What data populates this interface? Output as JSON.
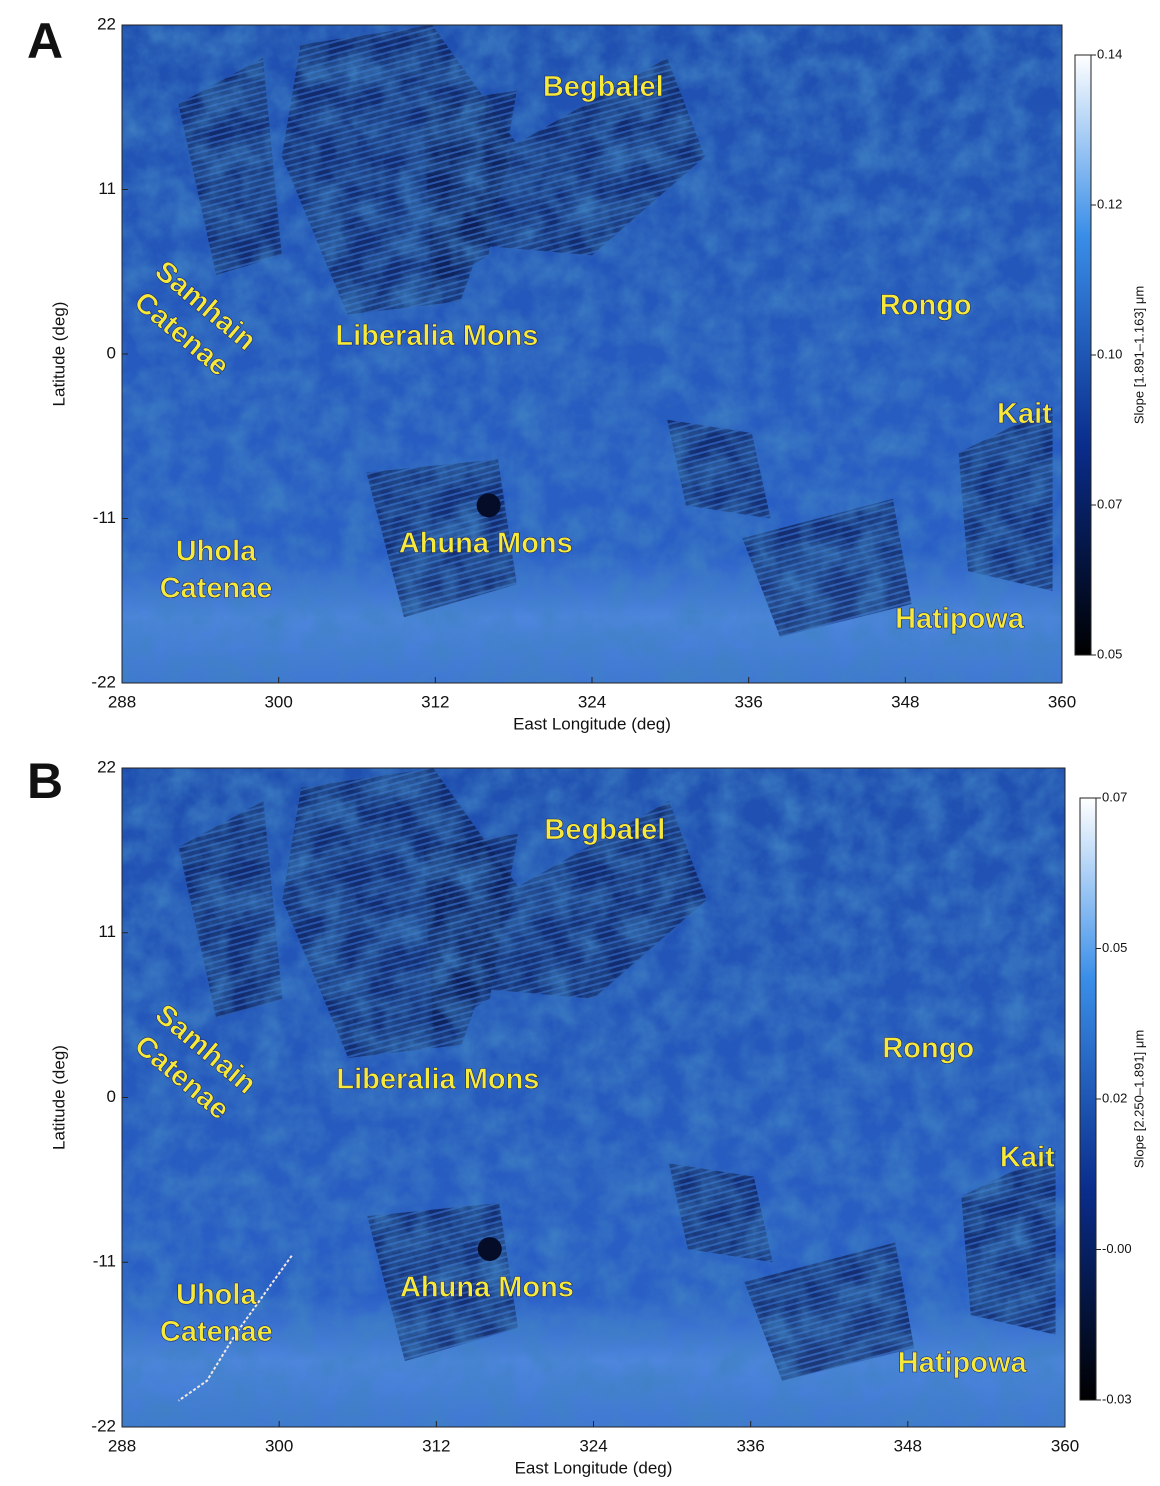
{
  "panels": [
    {
      "letter": "A",
      "xlabel": "East Longitude (deg)",
      "ylabel": "Latitude (deg)",
      "xlim": [
        288,
        360
      ],
      "xticks": [
        288,
        300,
        312,
        324,
        336,
        348,
        360
      ],
      "ylim": [
        -22,
        22
      ],
      "yticks": [
        -22,
        -11,
        0,
        11,
        22
      ],
      "colorbar_label": "Slope [1.891–1.163] μm",
      "clim": [
        0.05,
        0.14
      ],
      "cticks": [
        0.05,
        {
          "value": 0.0725,
          "label": "0.07"
        },
        {
          "value": 0.095,
          "label": "0.10"
        },
        {
          "value": 0.1175,
          "label": "0.12"
        },
        0.14
      ],
      "features": [
        [
          "Begbalel"
        ],
        [
          "Samhain",
          "Catenae"
        ],
        [
          "Liberalia Mons"
        ],
        [
          "Rongo"
        ],
        [
          "Kait"
        ],
        [
          "Ahuna Mons"
        ],
        [
          "Uhola",
          "Catenae"
        ],
        [
          "Hatipowa"
        ]
      ]
    },
    {
      "letter": "B",
      "xlabel": "East Longitude (deg)",
      "ylabel": "Latitude (deg)",
      "xlim": [
        288,
        360
      ],
      "xticks": [
        288,
        300,
        312,
        324,
        336,
        348,
        360
      ],
      "ylim": [
        -22,
        22
      ],
      "yticks": [
        -22,
        -11,
        0,
        11,
        22
      ],
      "colorbar_label": "Slope [2.250–1.891] μm",
      "clim": [
        -0.03,
        0.07
      ],
      "cticks": [
        -0.03,
        {
          "value": -0.005,
          "label": "-0.00"
        },
        0.02,
        {
          "value": 0.045,
          "label": "0.05"
        },
        0.07
      ],
      "features": [
        [
          "Begbalel"
        ],
        [
          "Samhain",
          "Catenae"
        ],
        [
          "Liberalia Mons"
        ],
        [
          "Rongo"
        ],
        [
          "Kait"
        ],
        [
          "Ahuna Mons"
        ],
        [
          "Uhola",
          "Catenae"
        ],
        [
          "Hatipowa"
        ]
      ]
    }
  ]
}
